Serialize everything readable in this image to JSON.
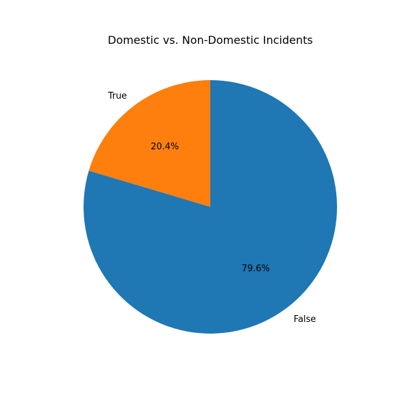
{
  "chart_data": {
    "type": "pie",
    "title": "Domestic vs. Non-Domestic Incidents",
    "slices": [
      {
        "label": "True",
        "value": 20.4,
        "pct_label": "20.4%",
        "color": "#ff7f0e"
      },
      {
        "label": "False",
        "value": 79.6,
        "pct_label": "79.6%",
        "color": "#1f77b4"
      }
    ],
    "start_angle_deg": 90,
    "direction": "counterclockwise",
    "legend": "none"
  }
}
